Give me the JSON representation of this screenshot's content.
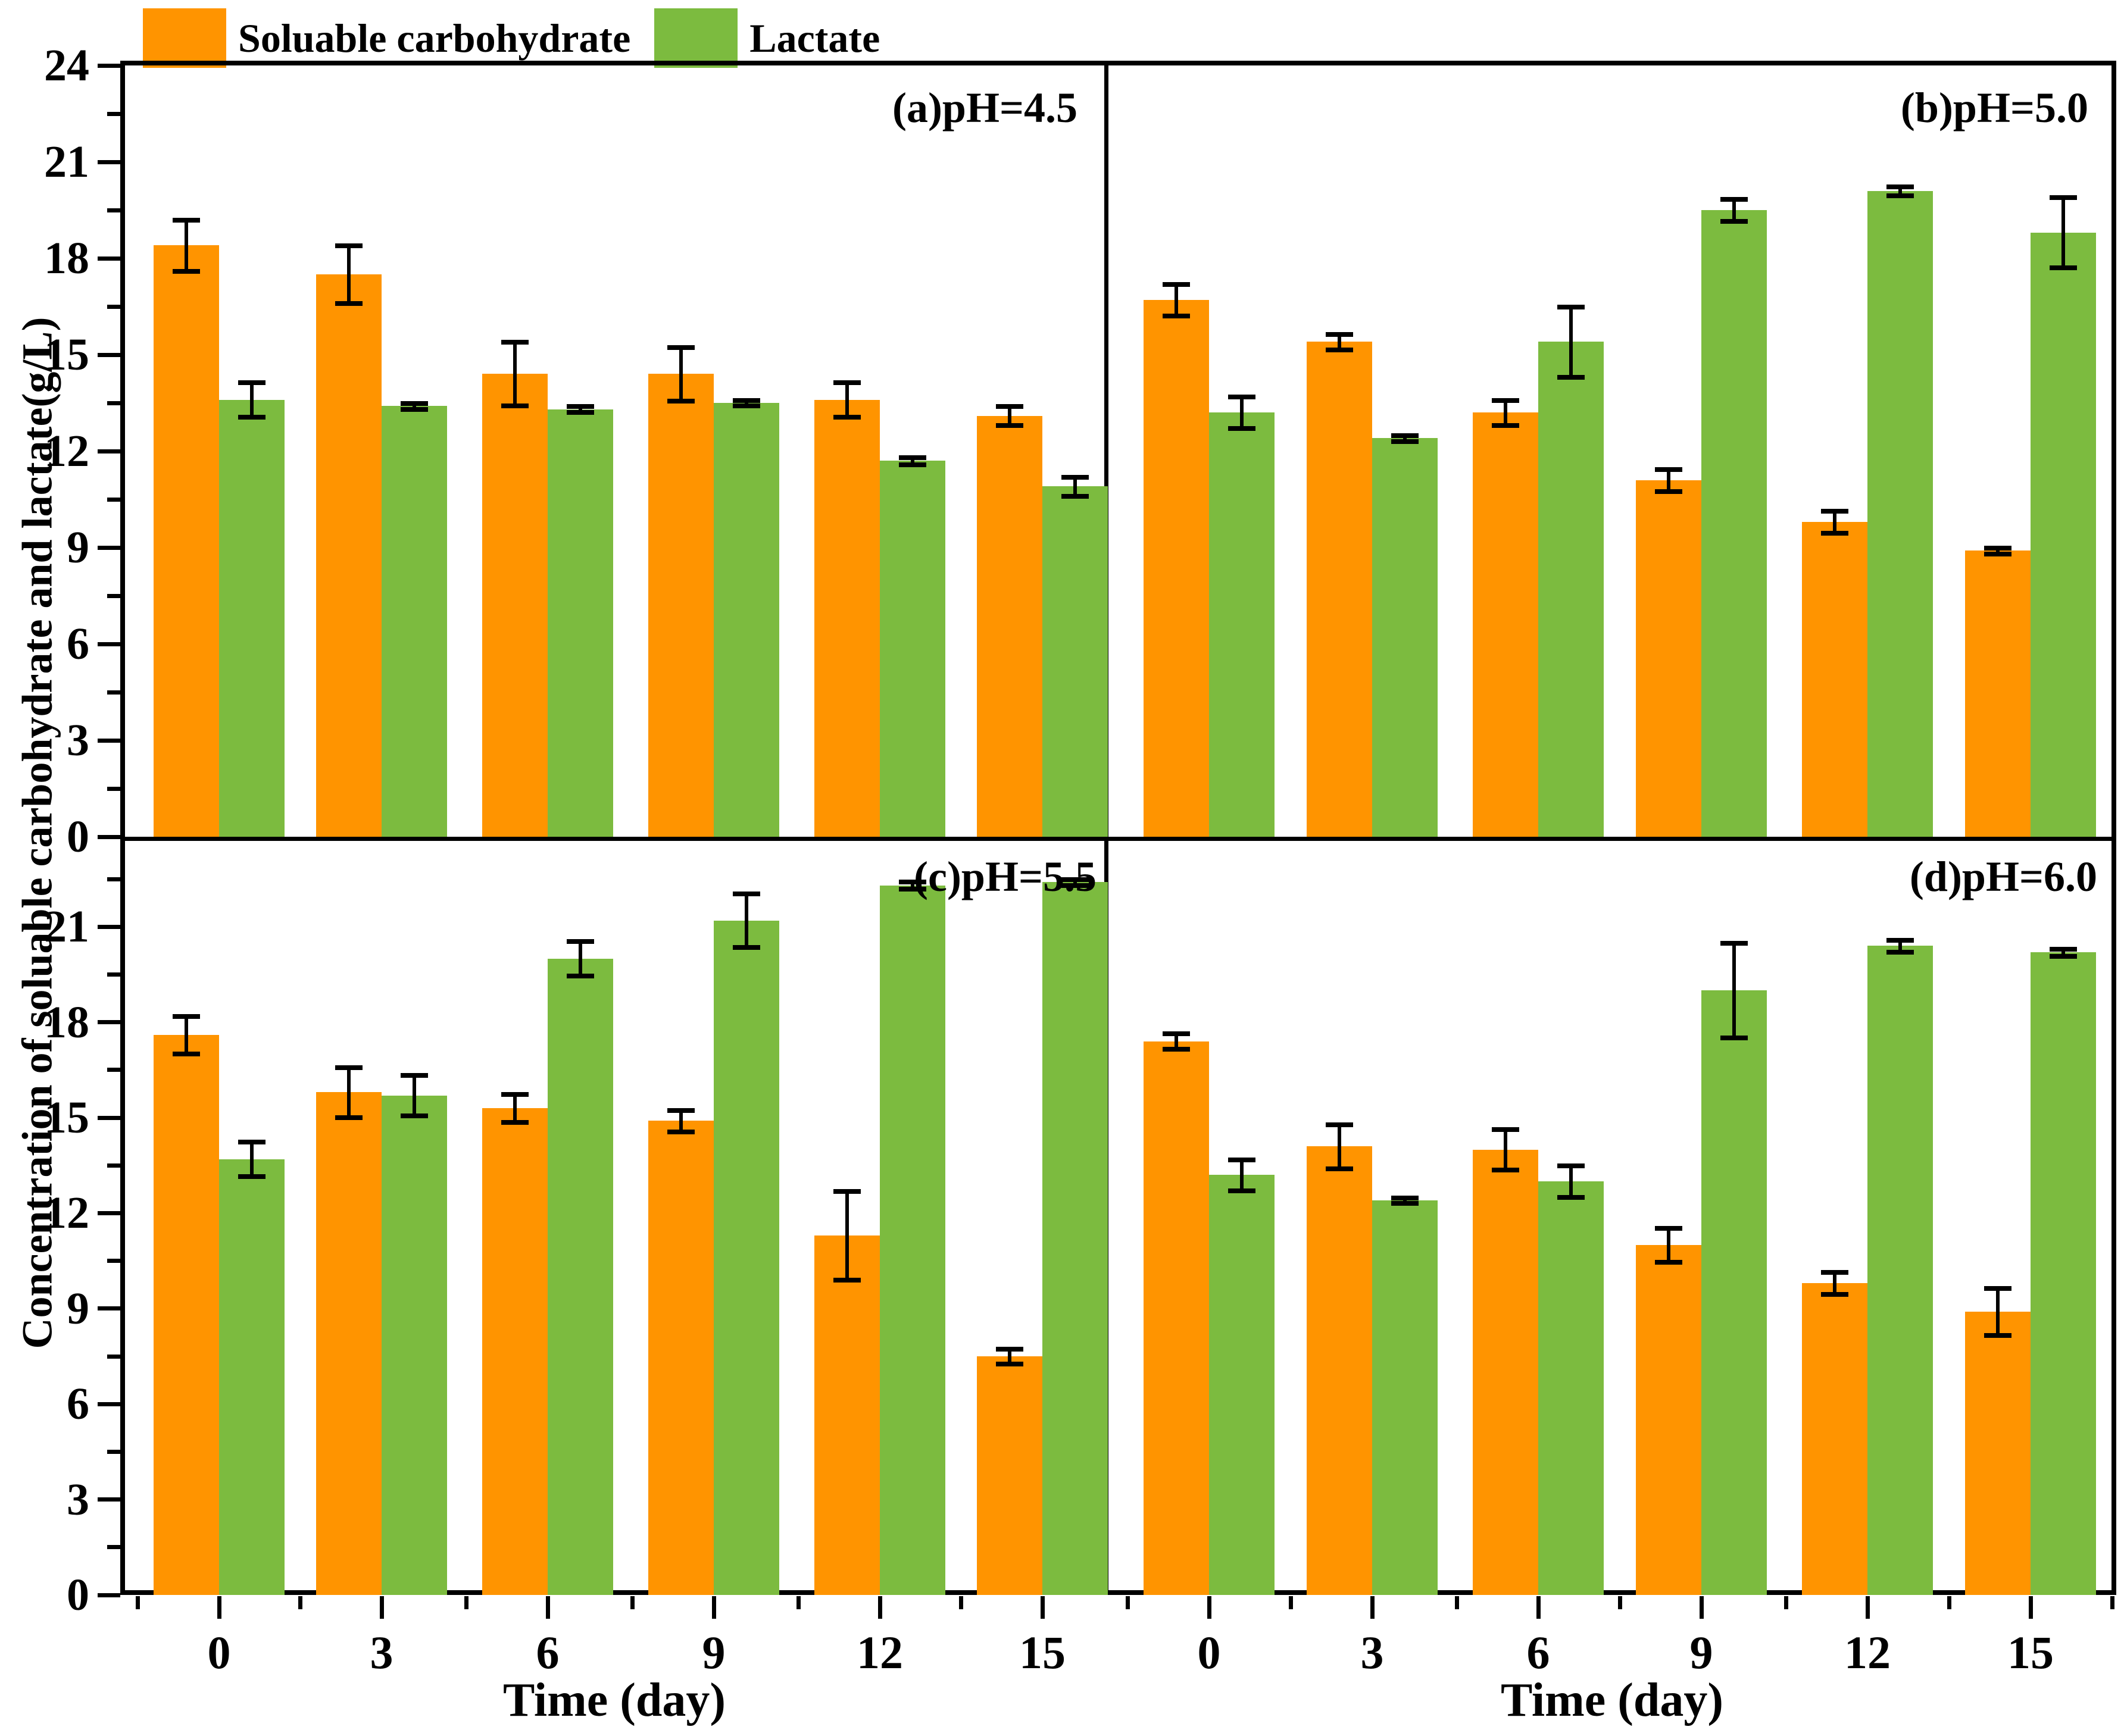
{
  "legend": {
    "items": [
      {
        "label": "Soluable carbohydrate",
        "color": "#FF9400"
      },
      {
        "label": "Lactate",
        "color": "#7CBB3F"
      }
    ]
  },
  "axes": {
    "y_title": "Concentration of soluable carbohydrate and lactate(g/L)",
    "x_title": "Time (day)",
    "x_ticks": [
      "0",
      "3",
      "6",
      "9",
      "12",
      "15"
    ],
    "y_ticks_top": [
      "0",
      "3",
      "6",
      "9",
      "12",
      "15",
      "18",
      "21",
      "24"
    ],
    "y_ticks_bottom": [
      "0",
      "3",
      "6",
      "9",
      "12",
      "15",
      "18",
      "21"
    ]
  },
  "chart_data": [
    {
      "type": "bar",
      "panel": "a",
      "label": "(a)pH=4.5",
      "categories": [
        0,
        3,
        6,
        9,
        12,
        15
      ],
      "xlabel": "Time (day)",
      "ylabel": "Concentration of soluable carbohydrate and lactate(g/L)",
      "ylim": [
        0,
        24
      ],
      "grid": false,
      "series": [
        {
          "name": "Soluable carbohydrate",
          "color": "#FF9400",
          "values": [
            18.4,
            17.5,
            14.4,
            14.4,
            13.6,
            13.1
          ],
          "errors": [
            0.8,
            0.9,
            1.0,
            0.85,
            0.55,
            0.3
          ]
        },
        {
          "name": "Lactate",
          "color": "#7CBB3F",
          "values": [
            13.6,
            13.4,
            13.3,
            13.5,
            11.7,
            10.9
          ],
          "errors": [
            0.55,
            0.1,
            0.1,
            0.1,
            0.12,
            0.3
          ]
        }
      ]
    },
    {
      "type": "bar",
      "panel": "b",
      "label": "(b)pH=5.0",
      "categories": [
        0,
        3,
        6,
        9,
        12,
        15
      ],
      "xlabel": "Time (day)",
      "ylabel": "Concentration of soluable carbohydrate and lactate(g/L)",
      "ylim": [
        0,
        24
      ],
      "grid": false,
      "series": [
        {
          "name": "Soluable carbohydrate",
          "color": "#FF9400",
          "values": [
            16.7,
            15.4,
            13.2,
            11.1,
            9.8,
            8.9
          ],
          "errors": [
            0.5,
            0.25,
            0.4,
            0.35,
            0.35,
            0.1
          ]
        },
        {
          "name": "Lactate",
          "color": "#7CBB3F",
          "values": [
            13.2,
            12.4,
            15.4,
            19.5,
            20.1,
            18.8
          ],
          "errors": [
            0.5,
            0.1,
            1.1,
            0.35,
            0.15,
            1.1
          ]
        }
      ]
    },
    {
      "type": "bar",
      "panel": "c",
      "label": "(c)pH=5.5",
      "categories": [
        0,
        3,
        6,
        9,
        12,
        15
      ],
      "xlabel": "Time (day)",
      "ylabel": "Concentration of soluable carbohydrate and lactate(g/L)",
      "ylim": [
        0,
        23.7
      ],
      "grid": false,
      "series": [
        {
          "name": "Soluable carbohydrate",
          "color": "#FF9400",
          "values": [
            17.6,
            15.8,
            15.3,
            14.9,
            11.3,
            7.5
          ],
          "errors": [
            0.6,
            0.8,
            0.45,
            0.35,
            1.4,
            0.25
          ]
        },
        {
          "name": "Lactate",
          "color": "#7CBB3F",
          "values": [
            13.7,
            15.7,
            20.0,
            21.2,
            22.3,
            22.4
          ],
          "errors": [
            0.55,
            0.65,
            0.55,
            0.85,
            0.12,
            0.1
          ]
        }
      ]
    },
    {
      "type": "bar",
      "panel": "d",
      "label": "(d)pH=6.0",
      "categories": [
        0,
        3,
        6,
        9,
        12,
        15
      ],
      "xlabel": "Time (day)",
      "ylabel": "Concentration of soluable carbohydrate and lactate(g/L)",
      "ylim": [
        0,
        23.7
      ],
      "grid": false,
      "series": [
        {
          "name": "Soluable carbohydrate",
          "color": "#FF9400",
          "values": [
            17.4,
            14.1,
            14.0,
            11.0,
            9.8,
            8.9
          ],
          "errors": [
            0.25,
            0.7,
            0.65,
            0.55,
            0.35,
            0.75
          ]
        },
        {
          "name": "Lactate",
          "color": "#7CBB3F",
          "values": [
            13.2,
            12.4,
            13.0,
            19.0,
            20.4,
            20.2
          ],
          "errors": [
            0.5,
            0.1,
            0.5,
            1.5,
            0.2,
            0.12
          ]
        }
      ]
    }
  ]
}
